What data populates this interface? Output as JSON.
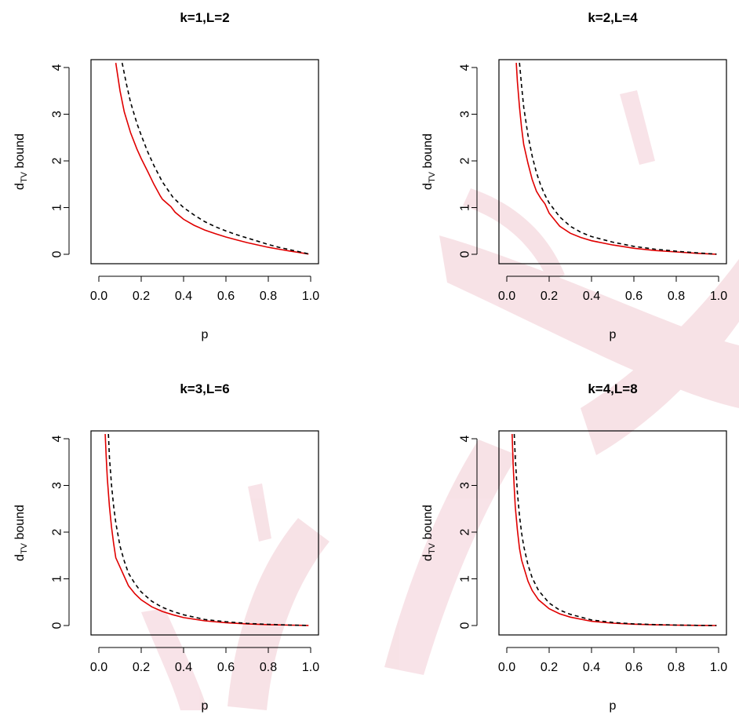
{
  "chart_data": [
    {
      "type": "line",
      "title": "k=1,L=2",
      "xlabel": "p",
      "ylabel": {
        "main": "d",
        "sub": "TV",
        "rest": " bound"
      },
      "xlim": [
        0,
        1
      ],
      "ylim": [
        0,
        4
      ],
      "xticks": [
        "0.0",
        "0.2",
        "0.4",
        "0.6",
        "0.8",
        "1.0"
      ],
      "yticks": [
        "0",
        "1",
        "2",
        "3",
        "4"
      ],
      "series": [
        {
          "color": "#e00000",
          "dash": "solid",
          "points": [
            [
              0.08,
              4.1
            ],
            [
              0.1,
              3.5
            ],
            [
              0.12,
              3.05
            ],
            [
              0.15,
              2.6
            ],
            [
              0.18,
              2.25
            ],
            [
              0.2,
              2.05
            ],
            [
              0.23,
              1.78
            ],
            [
              0.26,
              1.5
            ],
            [
              0.29,
              1.25
            ],
            [
              0.3,
              1.18
            ],
            [
              0.32,
              1.1
            ],
            [
              0.34,
              1.02
            ],
            [
              0.36,
              0.9
            ],
            [
              0.4,
              0.75
            ],
            [
              0.45,
              0.62
            ],
            [
              0.5,
              0.52
            ],
            [
              0.55,
              0.44
            ],
            [
              0.6,
              0.37
            ],
            [
              0.65,
              0.31
            ],
            [
              0.7,
              0.25
            ],
            [
              0.75,
              0.2
            ],
            [
              0.8,
              0.15
            ],
            [
              0.85,
              0.11
            ],
            [
              0.9,
              0.07
            ],
            [
              0.95,
              0.035
            ],
            [
              0.99,
              0.005
            ]
          ]
        },
        {
          "color": "#000000",
          "dash": "dashed",
          "points": [
            [
              0.11,
              4.1
            ],
            [
              0.13,
              3.65
            ],
            [
              0.15,
              3.25
            ],
            [
              0.18,
              2.8
            ],
            [
              0.2,
              2.55
            ],
            [
              0.23,
              2.2
            ],
            [
              0.26,
              1.9
            ],
            [
              0.3,
              1.55
            ],
            [
              0.35,
              1.22
            ],
            [
              0.4,
              1.0
            ],
            [
              0.45,
              0.84
            ],
            [
              0.5,
              0.7
            ],
            [
              0.55,
              0.59
            ],
            [
              0.6,
              0.5
            ],
            [
              0.65,
              0.42
            ],
            [
              0.7,
              0.35
            ],
            [
              0.75,
              0.28
            ],
            [
              0.8,
              0.21
            ],
            [
              0.85,
              0.15
            ],
            [
              0.9,
              0.1
            ],
            [
              0.95,
              0.05
            ],
            [
              0.99,
              0.008
            ]
          ]
        }
      ]
    },
    {
      "type": "line",
      "title": "k=2,L=4",
      "xlabel": "p",
      "ylabel": {
        "main": "d",
        "sub": "TV",
        "rest": " bound"
      },
      "xlim": [
        0,
        1
      ],
      "ylim": [
        0,
        4
      ],
      "xticks": [
        "0.0",
        "0.2",
        "0.4",
        "0.6",
        "0.8",
        "1.0"
      ],
      "yticks": [
        "0",
        "1",
        "2",
        "3",
        "4"
      ],
      "series": [
        {
          "color": "#e00000",
          "dash": "solid",
          "points": [
            [
              0.045,
              4.1
            ],
            [
              0.05,
              3.7
            ],
            [
              0.06,
              3.15
            ],
            [
              0.07,
              2.7
            ],
            [
              0.08,
              2.35
            ],
            [
              0.1,
              1.95
            ],
            [
              0.12,
              1.6
            ],
            [
              0.14,
              1.35
            ],
            [
              0.16,
              1.2
            ],
            [
              0.18,
              1.08
            ],
            [
              0.2,
              0.88
            ],
            [
              0.25,
              0.6
            ],
            [
              0.3,
              0.45
            ],
            [
              0.35,
              0.36
            ],
            [
              0.4,
              0.29
            ],
            [
              0.5,
              0.2
            ],
            [
              0.6,
              0.13
            ],
            [
              0.7,
              0.08
            ],
            [
              0.8,
              0.05
            ],
            [
              0.9,
              0.02
            ],
            [
              0.99,
              0.002
            ]
          ]
        },
        {
          "color": "#000000",
          "dash": "dashed",
          "points": [
            [
              0.06,
              4.1
            ],
            [
              0.07,
              3.6
            ],
            [
              0.08,
              3.15
            ],
            [
              0.1,
              2.55
            ],
            [
              0.12,
              2.1
            ],
            [
              0.14,
              1.75
            ],
            [
              0.16,
              1.48
            ],
            [
              0.18,
              1.27
            ],
            [
              0.2,
              1.1
            ],
            [
              0.25,
              0.8
            ],
            [
              0.3,
              0.6
            ],
            [
              0.35,
              0.47
            ],
            [
              0.4,
              0.38
            ],
            [
              0.5,
              0.26
            ],
            [
              0.6,
              0.17
            ],
            [
              0.7,
              0.11
            ],
            [
              0.8,
              0.065
            ],
            [
              0.9,
              0.03
            ],
            [
              0.99,
              0.003
            ]
          ]
        }
      ]
    },
    {
      "type": "line",
      "title": "k=3,L=6",
      "xlabel": "p",
      "ylabel": {
        "main": "d",
        "sub": "TV",
        "rest": " bound"
      },
      "xlim": [
        0,
        1
      ],
      "ylim": [
        0,
        4
      ],
      "xticks": [
        "0.0",
        "0.2",
        "0.4",
        "0.6",
        "0.8",
        "1.0"
      ],
      "yticks": [
        "0",
        "1",
        "2",
        "3",
        "4"
      ],
      "series": [
        {
          "color": "#e00000",
          "dash": "solid",
          "points": [
            [
              0.03,
              4.1
            ],
            [
              0.035,
              3.6
            ],
            [
              0.04,
              3.15
            ],
            [
              0.05,
              2.55
            ],
            [
              0.06,
              2.1
            ],
            [
              0.07,
              1.75
            ],
            [
              0.08,
              1.45
            ],
            [
              0.1,
              1.25
            ],
            [
              0.12,
              1.05
            ],
            [
              0.14,
              0.85
            ],
            [
              0.17,
              0.68
            ],
            [
              0.2,
              0.55
            ],
            [
              0.25,
              0.4
            ],
            [
              0.3,
              0.3
            ],
            [
              0.35,
              0.23
            ],
            [
              0.4,
              0.17
            ],
            [
              0.5,
              0.1
            ],
            [
              0.6,
              0.06
            ],
            [
              0.7,
              0.035
            ],
            [
              0.8,
              0.018
            ],
            [
              0.9,
              0.008
            ],
            [
              0.99,
              0.001
            ]
          ]
        },
        {
          "color": "#000000",
          "dash": "dashed",
          "points": [
            [
              0.045,
              4.1
            ],
            [
              0.05,
              3.6
            ],
            [
              0.06,
              3.0
            ],
            [
              0.07,
              2.55
            ],
            [
              0.08,
              2.2
            ],
            [
              0.1,
              1.7
            ],
            [
              0.12,
              1.38
            ],
            [
              0.14,
              1.12
            ],
            [
              0.17,
              0.9
            ],
            [
              0.2,
              0.72
            ],
            [
              0.25,
              0.52
            ],
            [
              0.3,
              0.39
            ],
            [
              0.35,
              0.3
            ],
            [
              0.4,
              0.23
            ],
            [
              0.5,
              0.13
            ],
            [
              0.6,
              0.08
            ],
            [
              0.7,
              0.045
            ],
            [
              0.8,
              0.025
            ],
            [
              0.9,
              0.01
            ],
            [
              0.99,
              0.001
            ]
          ]
        }
      ]
    },
    {
      "type": "line",
      "title": "k=4,L=8",
      "xlabel": "p",
      "ylabel": {
        "main": "d",
        "sub": "TV",
        "rest": " bound"
      },
      "xlim": [
        0,
        1
      ],
      "ylim": [
        0,
        4
      ],
      "xticks": [
        "0.0",
        "0.2",
        "0.4",
        "0.6",
        "0.8",
        "1.0"
      ],
      "yticks": [
        "0",
        "1",
        "2",
        "3",
        "4"
      ],
      "series": [
        {
          "color": "#e00000",
          "dash": "solid",
          "points": [
            [
              0.025,
              4.1
            ],
            [
              0.03,
              3.45
            ],
            [
              0.035,
              2.95
            ],
            [
              0.04,
              2.55
            ],
            [
              0.05,
              2.05
            ],
            [
              0.06,
              1.65
            ],
            [
              0.07,
              1.4
            ],
            [
              0.08,
              1.25
            ],
            [
              0.09,
              1.1
            ],
            [
              0.1,
              0.95
            ],
            [
              0.12,
              0.75
            ],
            [
              0.15,
              0.55
            ],
            [
              0.2,
              0.36
            ],
            [
              0.25,
              0.25
            ],
            [
              0.3,
              0.18
            ],
            [
              0.4,
              0.09
            ],
            [
              0.5,
              0.05
            ],
            [
              0.6,
              0.028
            ],
            [
              0.7,
              0.015
            ],
            [
              0.8,
              0.008
            ],
            [
              0.9,
              0.003
            ],
            [
              0.99,
              0.0005
            ]
          ]
        },
        {
          "color": "#000000",
          "dash": "dashed",
          "points": [
            [
              0.035,
              4.1
            ],
            [
              0.04,
              3.6
            ],
            [
              0.05,
              2.85
            ],
            [
              0.06,
              2.35
            ],
            [
              0.07,
              1.98
            ],
            [
              0.08,
              1.7
            ],
            [
              0.1,
              1.3
            ],
            [
              0.12,
              1.02
            ],
            [
              0.15,
              0.75
            ],
            [
              0.2,
              0.48
            ],
            [
              0.25,
              0.33
            ],
            [
              0.3,
              0.24
            ],
            [
              0.4,
              0.12
            ],
            [
              0.5,
              0.065
            ],
            [
              0.6,
              0.035
            ],
            [
              0.7,
              0.02
            ],
            [
              0.8,
              0.01
            ],
            [
              0.9,
              0.004
            ],
            [
              0.99,
              0.0005
            ]
          ]
        }
      ]
    }
  ],
  "watermark": {
    "color": "#c0002a"
  }
}
